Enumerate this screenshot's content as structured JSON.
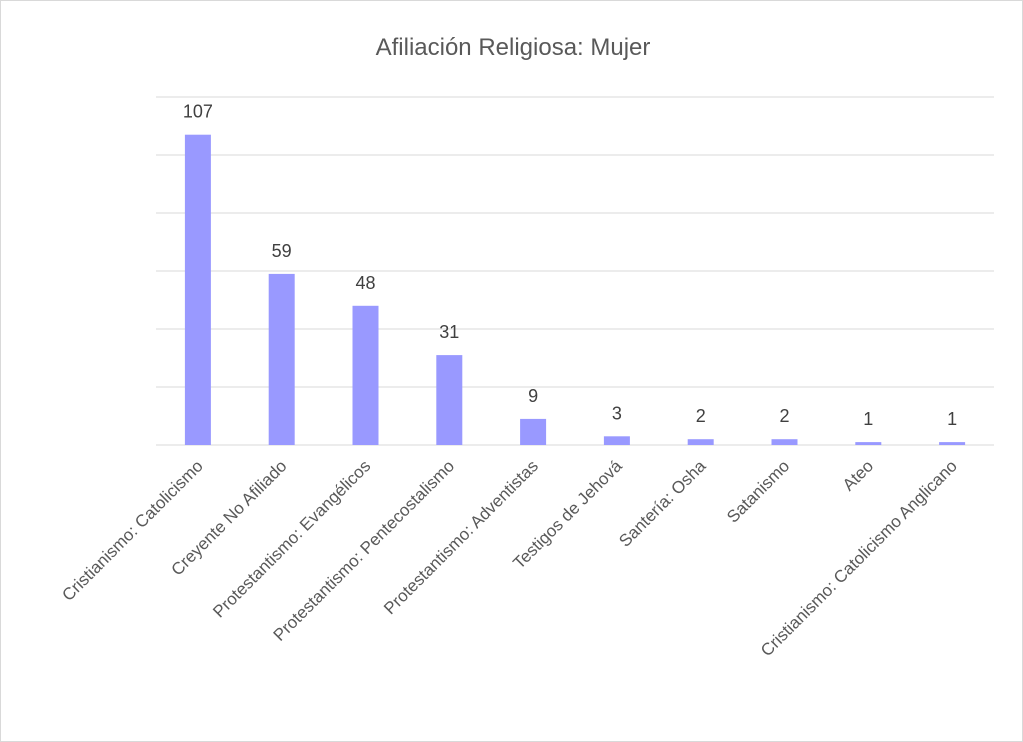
{
  "chart_data": {
    "type": "bar",
    "title": "Afiliación Religiosa: Mujer",
    "categories": [
      "Cristianismo: Catolicismo",
      "Creyente No Afiliado",
      "Protestantismo: Evangélicos",
      "Protestantismo: Pentecostalismo",
      "Protestantismo: Adventistas",
      "Testigos de Jehová",
      "Santería: Osha",
      "Satanismo",
      "Ateo",
      "Cristianismo: Catolicismo Anglicano"
    ],
    "values": [
      107,
      59,
      48,
      31,
      9,
      3,
      2,
      2,
      1,
      1
    ],
    "data_labels": [
      "107",
      "59",
      "48",
      "31",
      "9",
      "3",
      "2",
      "2",
      "1",
      "1"
    ],
    "ylim": [
      0,
      120
    ],
    "ytick_step": 20,
    "grid": true,
    "bar_color": "#9999ff",
    "gridline_color": "#d9d9d9"
  }
}
